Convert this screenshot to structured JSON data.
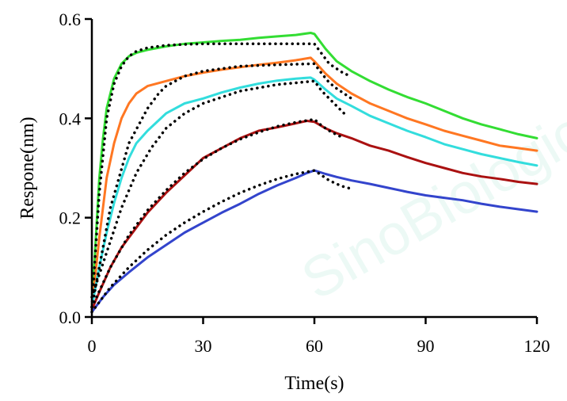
{
  "chart_data": {
    "type": "line",
    "title": "",
    "xlabel": "Time(s)",
    "ylabel": "Respone(nm)",
    "xlim": [
      0,
      120
    ],
    "ylim": [
      0,
      0.6
    ],
    "xticks": [
      0,
      30,
      60,
      90,
      120
    ],
    "xtick_labels": [
      "0",
      "30",
      "60",
      "90",
      "120"
    ],
    "yticks": [
      0,
      0.2,
      0.4,
      0.6
    ],
    "ytick_labels": [
      "0.0",
      "0.2",
      "0.4",
      "0.6"
    ],
    "grid": false,
    "legend": "none",
    "watermark": "SinoBiological",
    "series": [
      {
        "color": "#33dd33",
        "x": [
          0,
          1,
          2,
          3,
          4,
          6,
          8,
          10,
          12,
          15,
          20,
          25,
          30,
          35,
          40,
          45,
          50,
          55,
          59,
          60,
          63,
          66,
          70,
          75,
          80,
          85,
          90,
          95,
          100,
          105,
          110,
          115,
          120
        ],
        "y": [
          0.02,
          0.15,
          0.28,
          0.36,
          0.42,
          0.48,
          0.51,
          0.525,
          0.532,
          0.538,
          0.545,
          0.55,
          0.553,
          0.556,
          0.558,
          0.562,
          0.565,
          0.568,
          0.572,
          0.57,
          0.54,
          0.515,
          0.495,
          0.475,
          0.458,
          0.443,
          0.43,
          0.415,
          0.4,
          0.388,
          0.378,
          0.368,
          0.36
        ]
      },
      {
        "color": "#ff7722",
        "x": [
          0,
          2,
          4,
          6,
          8,
          10,
          12,
          15,
          20,
          25,
          30,
          35,
          40,
          45,
          50,
          55,
          59,
          60,
          63,
          66,
          70,
          75,
          80,
          85,
          90,
          95,
          100,
          105,
          110,
          115,
          120
        ],
        "y": [
          0.02,
          0.16,
          0.28,
          0.35,
          0.4,
          0.43,
          0.45,
          0.465,
          0.475,
          0.485,
          0.492,
          0.498,
          0.503,
          0.508,
          0.512,
          0.517,
          0.522,
          0.515,
          0.49,
          0.47,
          0.45,
          0.43,
          0.415,
          0.4,
          0.388,
          0.375,
          0.365,
          0.355,
          0.345,
          0.34,
          0.335
        ]
      },
      {
        "color": "#33dddd",
        "x": [
          0,
          2,
          4,
          6,
          8,
          10,
          12,
          15,
          20,
          25,
          30,
          35,
          40,
          45,
          50,
          55,
          59,
          60,
          63,
          66,
          70,
          75,
          80,
          85,
          90,
          95,
          100,
          105,
          110,
          115,
          120
        ],
        "y": [
          0.02,
          0.1,
          0.17,
          0.23,
          0.28,
          0.32,
          0.35,
          0.375,
          0.41,
          0.43,
          0.44,
          0.452,
          0.462,
          0.47,
          0.476,
          0.48,
          0.482,
          0.478,
          0.458,
          0.44,
          0.425,
          0.405,
          0.39,
          0.375,
          0.362,
          0.348,
          0.338,
          0.328,
          0.32,
          0.312,
          0.305
        ]
      },
      {
        "color": "#aa1111",
        "x": [
          0,
          2,
          5,
          8,
          10,
          15,
          20,
          25,
          30,
          35,
          40,
          45,
          50,
          55,
          58,
          60,
          63,
          66,
          70,
          75,
          80,
          85,
          90,
          95,
          100,
          105,
          110,
          115,
          120
        ],
        "y": [
          0.015,
          0.05,
          0.1,
          0.14,
          0.16,
          0.21,
          0.25,
          0.285,
          0.32,
          0.34,
          0.36,
          0.375,
          0.382,
          0.39,
          0.395,
          0.393,
          0.38,
          0.37,
          0.36,
          0.345,
          0.335,
          0.322,
          0.31,
          0.3,
          0.29,
          0.283,
          0.278,
          0.272,
          0.268
        ]
      },
      {
        "color": "#3344cc",
        "x": [
          0,
          3,
          6,
          10,
          15,
          20,
          25,
          30,
          35,
          40,
          45,
          50,
          55,
          58,
          60,
          63,
          66,
          70,
          75,
          80,
          85,
          90,
          95,
          100,
          105,
          110,
          115,
          120
        ],
        "y": [
          0.01,
          0.04,
          0.065,
          0.09,
          0.12,
          0.145,
          0.17,
          0.19,
          0.21,
          0.228,
          0.248,
          0.265,
          0.28,
          0.29,
          0.295,
          0.288,
          0.282,
          0.275,
          0.268,
          0.26,
          0.252,
          0.245,
          0.24,
          0.235,
          0.228,
          0.222,
          0.217,
          0.212
        ]
      }
    ],
    "fits": [
      {
        "x": [
          0,
          2,
          4,
          6,
          8,
          10,
          12,
          15,
          20,
          25,
          30,
          40,
          50,
          60,
          62,
          64,
          66,
          68,
          70
        ],
        "y": [
          0.02,
          0.25,
          0.4,
          0.47,
          0.505,
          0.525,
          0.535,
          0.542,
          0.547,
          0.549,
          0.55,
          0.55,
          0.55,
          0.55,
          0.53,
          0.51,
          0.5,
          0.49,
          0.485
        ]
      },
      {
        "x": [
          0,
          5,
          10,
          15,
          18,
          20,
          25,
          30,
          40,
          50,
          60,
          62,
          64,
          66,
          68,
          70
        ],
        "y": [
          0.02,
          0.22,
          0.35,
          0.42,
          0.45,
          0.465,
          0.485,
          0.495,
          0.505,
          0.508,
          0.51,
          0.49,
          0.472,
          0.46,
          0.45,
          0.44
        ]
      },
      {
        "x": [
          0,
          4,
          8,
          12,
          16,
          20,
          25,
          30,
          40,
          50,
          60,
          62,
          64,
          66,
          68
        ],
        "y": [
          0.04,
          0.13,
          0.22,
          0.29,
          0.34,
          0.38,
          0.41,
          0.43,
          0.455,
          0.468,
          0.475,
          0.455,
          0.44,
          0.425,
          0.41
        ]
      },
      {
        "x": [
          0,
          5,
          10,
          15,
          20,
          25,
          30,
          35,
          40,
          45,
          50,
          55,
          60,
          62,
          64,
          66,
          68
        ],
        "y": [
          0.02,
          0.1,
          0.165,
          0.215,
          0.255,
          0.29,
          0.318,
          0.34,
          0.358,
          0.372,
          0.384,
          0.392,
          0.398,
          0.385,
          0.375,
          0.367,
          0.36
        ]
      },
      {
        "x": [
          0,
          5,
          10,
          15,
          20,
          25,
          30,
          35,
          40,
          45,
          50,
          55,
          60,
          62,
          64,
          66,
          68,
          70
        ],
        "y": [
          0.01,
          0.06,
          0.1,
          0.135,
          0.165,
          0.19,
          0.212,
          0.232,
          0.25,
          0.265,
          0.278,
          0.288,
          0.295,
          0.285,
          0.275,
          0.268,
          0.262,
          0.258
        ]
      }
    ]
  }
}
